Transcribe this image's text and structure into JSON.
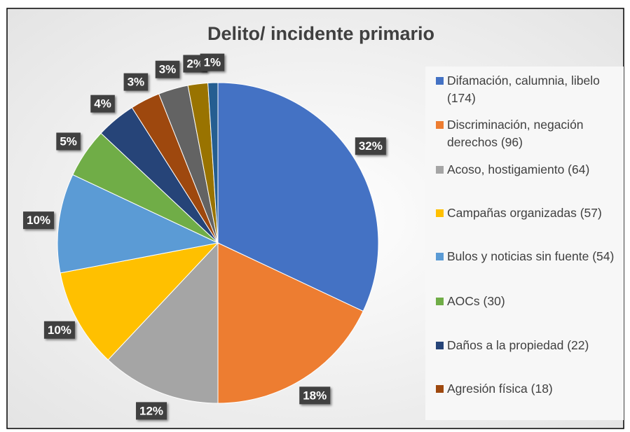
{
  "chart_data": {
    "type": "pie",
    "title": "Delito/ incidente primario",
    "categories": [
      "Difamación, calumnia, libelo (174)",
      "Discriminación, negación derechos (96)",
      "Acoso, hostigamiento (64)",
      "Campañas organizadas (57)",
      "Bulos y noticias sin fuente (54)",
      "AOCs (30)",
      "Daños a la propiedad (22)",
      "Agresión física (18)",
      null,
      null,
      null
    ],
    "values": [
      32,
      18,
      12,
      10,
      10,
      5,
      4,
      3,
      3,
      2,
      1
    ],
    "value_labels": [
      "32%",
      "18%",
      "12%",
      "10%",
      "10%",
      "5%",
      "4%",
      "3%",
      "3%",
      "2%",
      "1%"
    ],
    "colors": [
      "#4472c4",
      "#ed7d31",
      "#a5a5a5",
      "#ffc000",
      "#5b9bd5",
      "#70ad47",
      "#264478",
      "#9e480e",
      "#636363",
      "#997300",
      "#255e91"
    ],
    "legend": "right"
  }
}
